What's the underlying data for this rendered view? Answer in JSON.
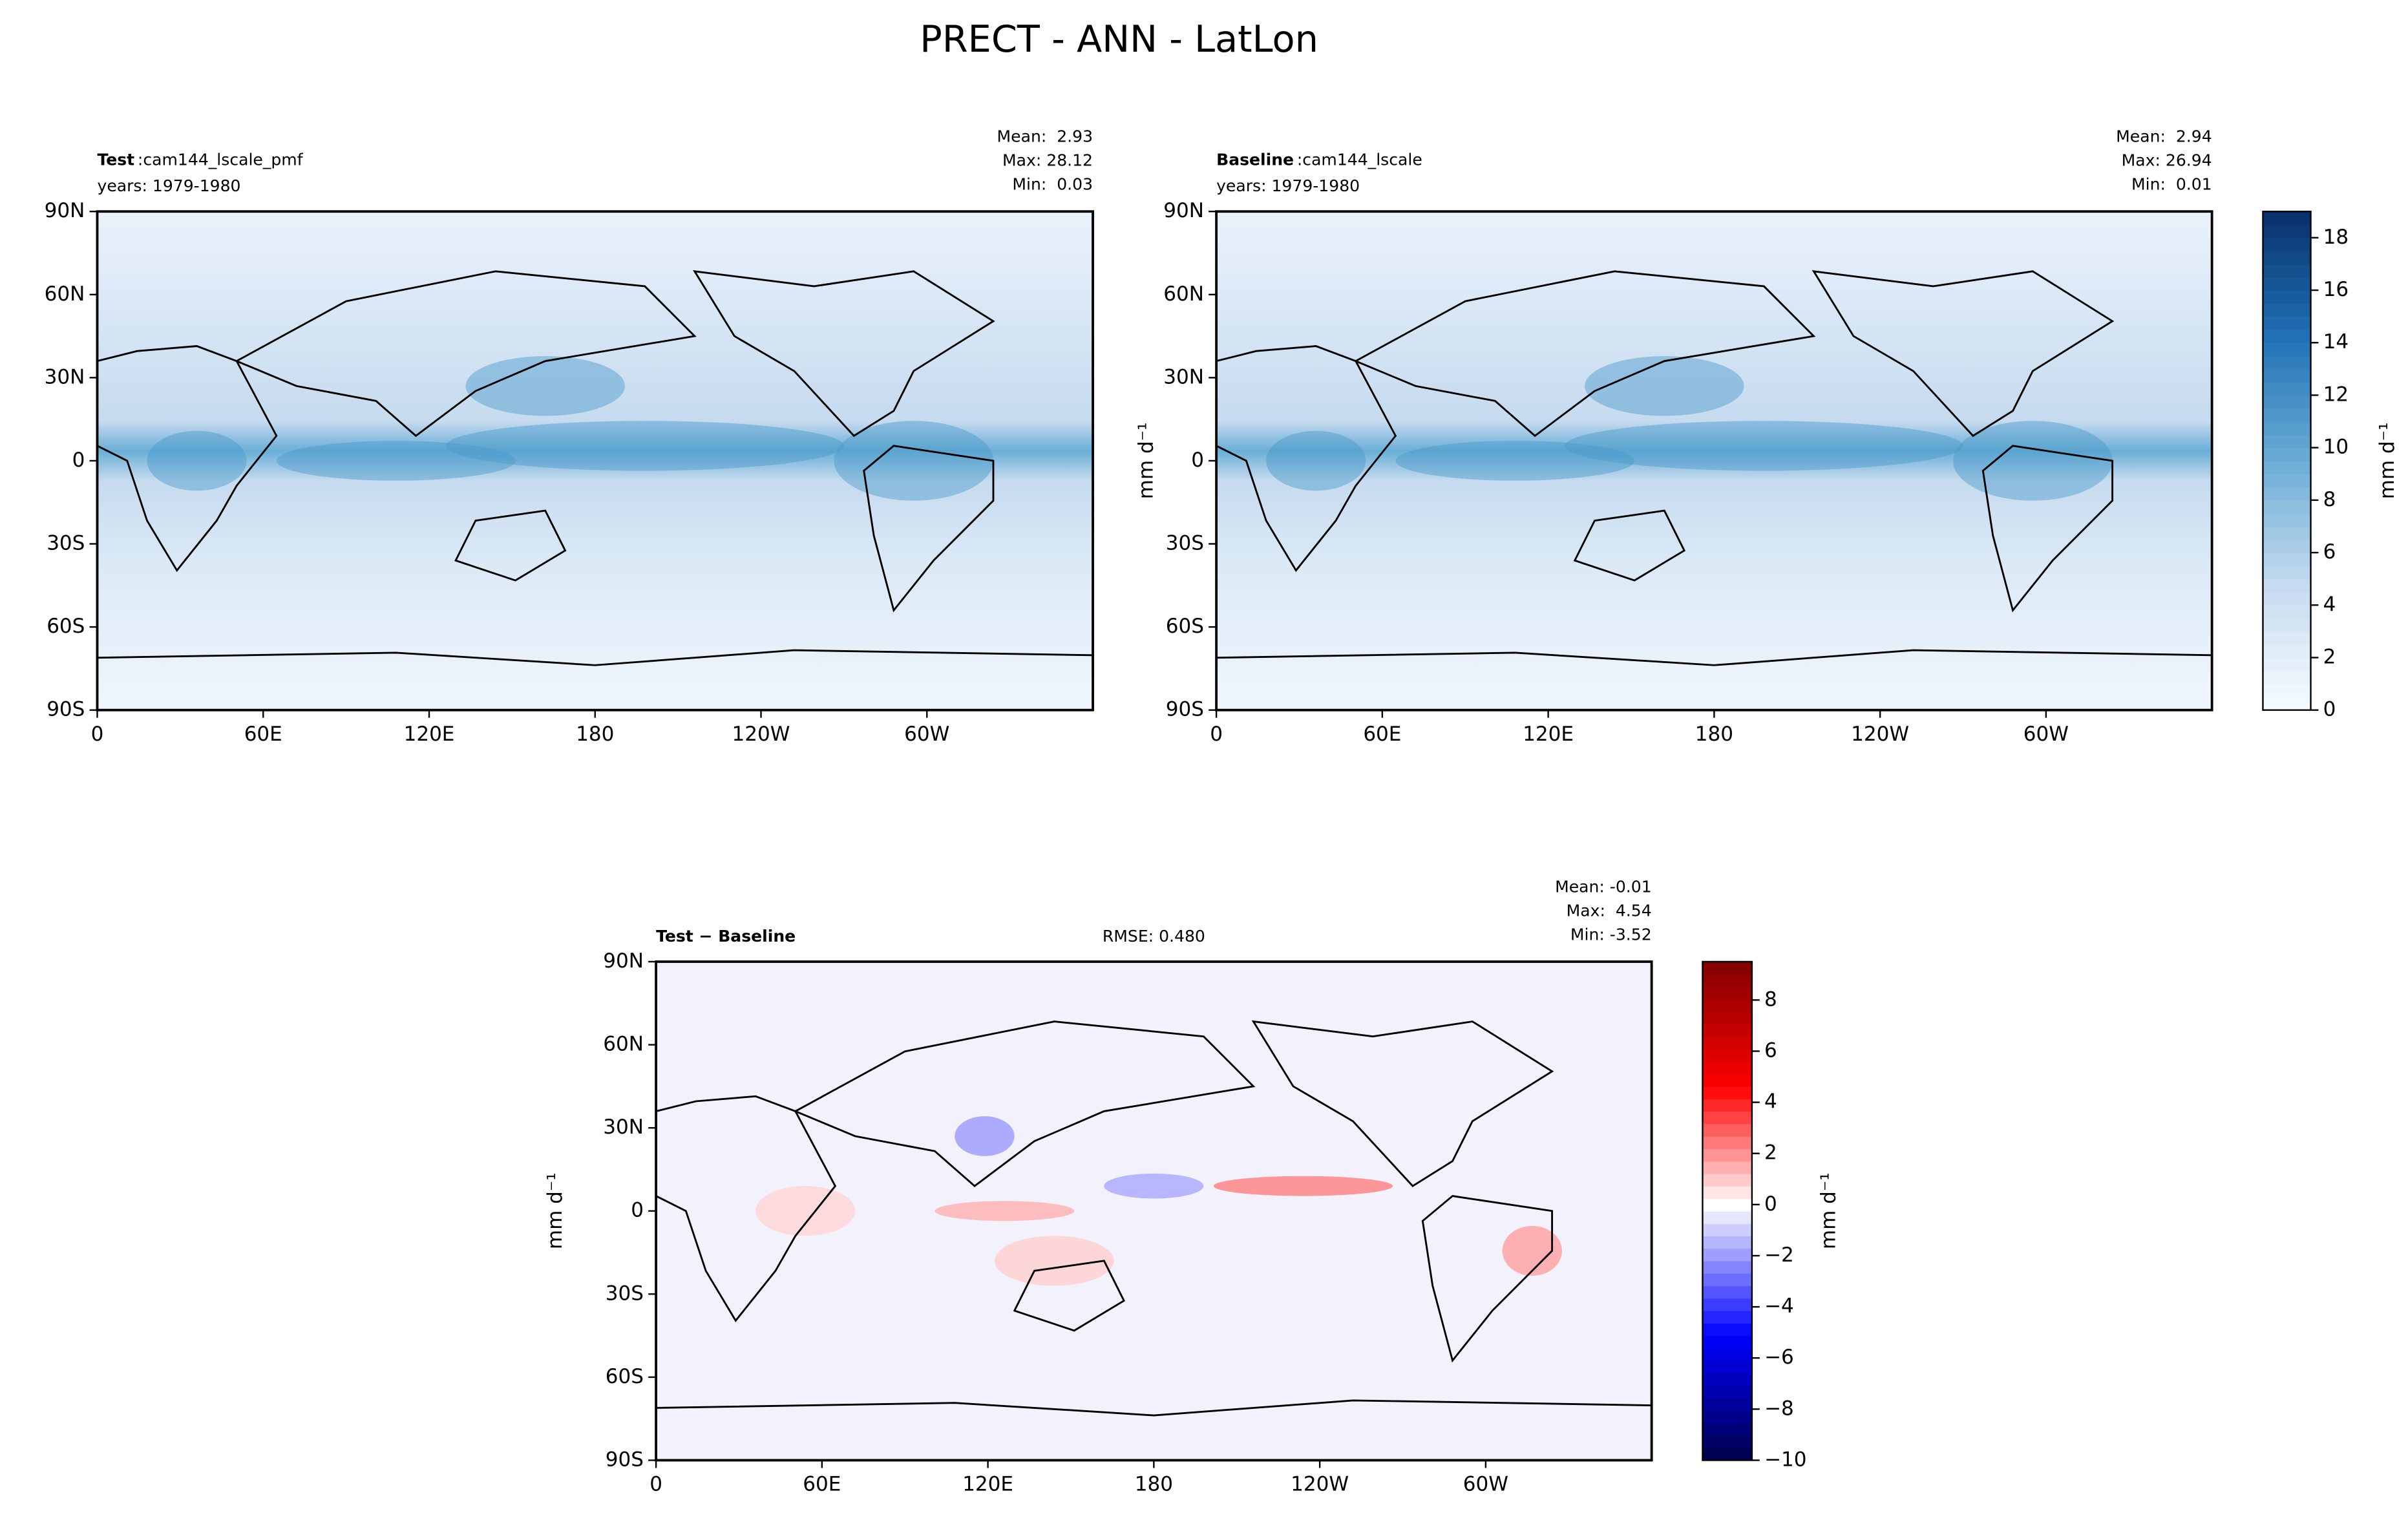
{
  "title": "PRECT - ANN - LatLon",
  "map_xticks": [
    "0",
    "60E",
    "120E",
    "180",
    "120W",
    "60W"
  ],
  "map_yticks": [
    "90N",
    "60N",
    "30N",
    "0",
    "30S",
    "60S",
    "90S"
  ],
  "panels": [
    {
      "label": "Test",
      "sep": ":",
      "name": "cam144_lscale_pmf",
      "years": "years: 1979-1980",
      "stats": [
        "Mean:  2.93",
        "Max: 28.12",
        "Min:  0.03"
      ]
    },
    {
      "label": "Baseline",
      "sep": ":",
      "name": "cam144_lscale",
      "years": "years: 1979-1980",
      "stats": [
        "Mean:  2.94",
        "Max: 26.94",
        "Min:  0.01"
      ],
      "ylabel": "mm d⁻¹"
    },
    {
      "label": "Test − Baseline",
      "rmse": "RMSE: 0.480",
      "stats": [
        "Mean: -0.01",
        "Max:  4.54",
        "Min: -3.52"
      ],
      "ylabel": "mm d⁻¹"
    }
  ],
  "colorbars": [
    {
      "label": "mm d⁻¹",
      "cmap": "Blues",
      "lim": [
        0,
        19
      ],
      "ticks": [
        0,
        2,
        4,
        6,
        8,
        10,
        12,
        14,
        16,
        18
      ]
    },
    {
      "label": "mm d⁻¹",
      "cmap": "seismic",
      "lim": [
        -10,
        9.5
      ],
      "ticks": [
        {
          "value": -10,
          "label": "−10"
        },
        {
          "value": -8,
          "label": "−8"
        },
        {
          "value": -6,
          "label": "−6"
        },
        {
          "value": -4,
          "label": "−4"
        },
        {
          "value": -2,
          "label": "−2"
        },
        0,
        2,
        4,
        6,
        8
      ]
    }
  ]
}
